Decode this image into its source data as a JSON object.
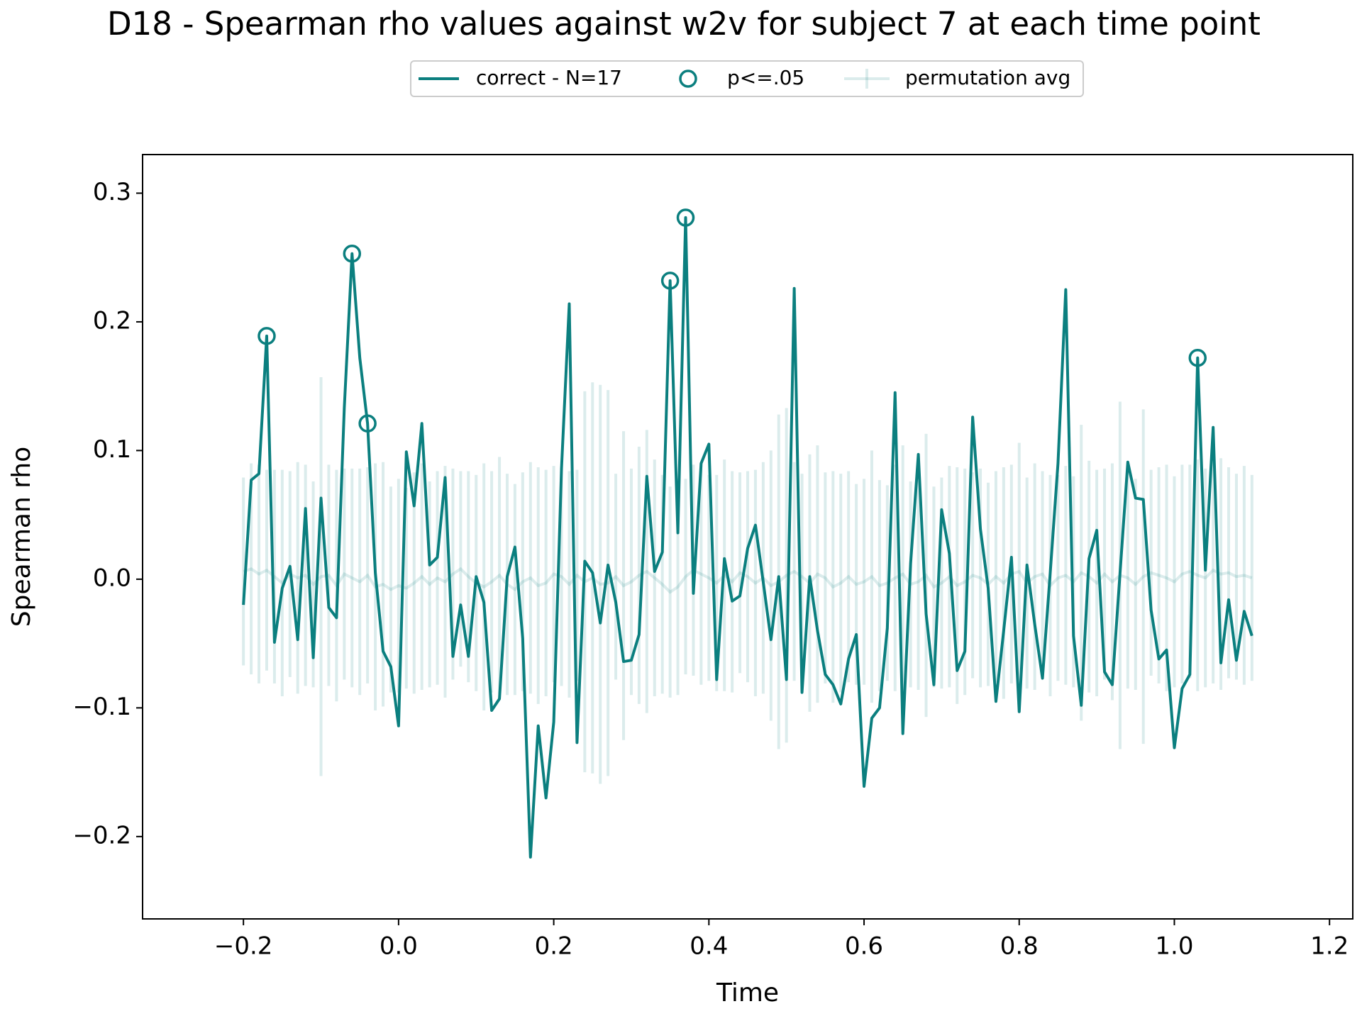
{
  "chart_data": {
    "type": "line",
    "title": "D18 - Spearman rho values against w2v for subject 7 at each time point",
    "xlabel": "Time",
    "ylabel": "Spearman rho",
    "x": [
      -0.2,
      -0.19,
      -0.18,
      -0.17,
      -0.16,
      -0.15,
      -0.14,
      -0.13,
      -0.12,
      -0.11,
      -0.1,
      -0.09,
      -0.08,
      -0.07,
      -0.06,
      -0.05,
      -0.04,
      -0.03,
      -0.02,
      -0.01,
      0,
      0.01,
      0.02,
      0.03,
      0.04,
      0.05,
      0.06,
      0.07,
      0.08,
      0.09,
      0.1,
      0.11,
      0.12,
      0.13,
      0.14,
      0.15,
      0.16,
      0.17,
      0.18,
      0.19,
      0.2,
      0.21,
      0.22,
      0.23,
      0.24,
      0.25,
      0.26,
      0.27,
      0.28,
      0.29,
      0.3,
      0.31,
      0.32,
      0.33,
      0.34,
      0.35,
      0.36,
      0.37,
      0.38,
      0.39,
      0.4,
      0.41,
      0.42,
      0.43,
      0.44,
      0.45,
      0.46,
      0.47,
      0.48,
      0.49,
      0.5,
      0.51,
      0.52,
      0.53,
      0.54,
      0.55,
      0.56,
      0.57,
      0.58,
      0.59,
      0.6,
      0.61,
      0.62,
      0.63,
      0.64,
      0.65,
      0.66,
      0.67,
      0.68,
      0.69,
      0.7,
      0.71,
      0.72,
      0.73,
      0.74,
      0.75,
      0.76,
      0.77,
      0.78,
      0.79,
      0.8,
      0.81,
      0.82,
      0.83,
      0.84,
      0.85,
      0.86,
      0.87,
      0.88,
      0.89,
      0.9,
      0.91,
      0.92,
      0.93,
      0.94,
      0.95,
      0.96,
      0.97,
      0.98,
      0.99,
      1,
      1.01,
      1.02,
      1.03,
      1.04,
      1.05,
      1.06,
      1.07,
      1.08,
      1.09,
      1.1
    ],
    "series": [
      {
        "name": "correct - N=17",
        "color": "#0b7f7f",
        "values": [
          -0.02,
          0.077,
          0.082,
          0.189,
          -0.049,
          -0.007,
          0.01,
          -0.047,
          0.055,
          -0.061,
          0.063,
          -0.022,
          -0.03,
          0.133,
          0.253,
          0.172,
          0.121,
          0.005,
          -0.056,
          -0.068,
          -0.114,
          0.099,
          0.057,
          0.121,
          0.011,
          0.017,
          0.079,
          -0.06,
          -0.02,
          -0.06,
          0.002,
          -0.018,
          -0.102,
          -0.093,
          0.002,
          0.025,
          -0.046,
          -0.216,
          -0.114,
          -0.17,
          -0.111,
          0.086,
          0.214,
          -0.127,
          0.014,
          0.005,
          -0.034,
          0.011,
          -0.018,
          -0.064,
          -0.063,
          -0.043,
          0.08,
          0.006,
          0.021,
          0.232,
          0.036,
          0.281,
          -0.011,
          0.09,
          0.105,
          -0.078,
          0.016,
          -0.017,
          -0.013,
          0.024,
          0.042,
          -0.002,
          -0.047,
          0.002,
          -0.078,
          0.226,
          -0.088,
          0.002,
          -0.04,
          -0.074,
          -0.082,
          -0.097,
          -0.062,
          -0.043,
          -0.161,
          -0.108,
          -0.1,
          -0.038,
          0.145,
          -0.12,
          0.012,
          0.097,
          -0.027,
          -0.082,
          0.054,
          0.02,
          -0.071,
          -0.056,
          0.126,
          0.039,
          -0.007,
          -0.095,
          -0.04,
          0.017,
          -0.103,
          0.011,
          -0.035,
          -0.077,
          0.005,
          0.09,
          0.225,
          -0.044,
          -0.098,
          0.016,
          0.038,
          -0.072,
          -0.082,
          0.005,
          0.091,
          0.063,
          0.062,
          -0.024,
          -0.062,
          -0.055,
          -0.131,
          -0.085,
          -0.074,
          0.172,
          0.007,
          0.118,
          -0.065,
          -0.016,
          -0.063,
          -0.025,
          -0.044
        ]
      },
      {
        "name": "p<=.05",
        "color": "#0b7f7f",
        "marker": "circle",
        "x": [
          -0.17,
          -0.06,
          -0.04,
          0.35,
          0.37,
          1.03
        ],
        "values": [
          0.189,
          0.253,
          0.121,
          0.232,
          0.281,
          0.172
        ]
      },
      {
        "name": "permutation avg",
        "color": "#0b7f7f",
        "alpha": 0.15,
        "values": [
          0.006,
          0.008,
          0.004,
          0.007,
          0.002,
          -0.003,
          0.004,
          0.001,
          0.003,
          -0.004,
          0.002,
          0.003,
          -0.005,
          0.004,
          0.001,
          -0.002,
          0.003,
          -0.006,
          -0.004,
          -0.008,
          -0.005,
          -0.007,
          -0.003,
          0.002,
          -0.004,
          0.001,
          -0.002,
          0.004,
          0.008,
          0.002,
          -0.003,
          -0.006,
          -0.002,
          0.003,
          -0.004,
          -0.008,
          -0.002,
          0.001,
          -0.005,
          -0.003,
          0.004,
          0.002,
          -0.004,
          0.003,
          -0.002,
          0.001,
          -0.004,
          -0.003,
          0.002,
          -0.005,
          -0.002,
          0.003,
          0.006,
          0.001,
          -0.004,
          -0.01,
          -0.006,
          0.002,
          0.007,
          0.004,
          0.001,
          -0.003,
          0.003,
          -0.002,
          0.005,
          0.002,
          -0.003,
          0.001,
          -0.005,
          -0.002,
          0.003,
          0.006,
          0.002,
          -0.003,
          0.004,
          0.001,
          -0.006,
          -0.003,
          0.002,
          -0.004,
          -0.002,
          0.002,
          -0.005,
          -0.003,
          0.001,
          0.004,
          -0.004,
          -0.002,
          0.003,
          -0.006,
          -0.003,
          0.002,
          -0.005,
          -0.002,
          0.003,
          0.001,
          -0.004,
          0.002,
          -0.003,
          0.004,
          0.006,
          -0.003,
          0.002,
          0.004,
          -0.005,
          0.001,
          0.003,
          -0.002,
          0.005,
          0.002,
          -0.003,
          0.004,
          -0.002,
          0.003,
          0.001,
          -0.004,
          0.002,
          0.005,
          0.003,
          0.001,
          -0.002,
          0.004,
          0.006,
          0.003,
          0.001,
          0.007,
          0.004,
          0.005,
          0.002,
          0.003,
          0.001
        ],
        "errors": [
          0.073,
          0.082,
          0.085,
          0.078,
          0.083,
          0.088,
          0.08,
          0.09,
          0.086,
          0.08,
          0.155,
          0.086,
          0.09,
          0.082,
          0.085,
          0.088,
          0.084,
          0.096,
          0.095,
          0.08,
          0.083,
          0.078,
          0.086,
          0.088,
          0.08,
          0.083,
          0.09,
          0.082,
          0.076,
          0.082,
          0.084,
          0.096,
          0.086,
          0.092,
          0.086,
          0.082,
          0.085,
          0.09,
          0.092,
          0.088,
          0.084,
          0.085,
          0.088,
          0.082,
          0.148,
          0.152,
          0.155,
          0.15,
          0.08,
          0.12,
          0.088,
          0.1,
          0.11,
          0.092,
          0.085,
          0.082,
          0.084,
          0.076,
          0.082,
          0.086,
          0.08,
          0.084,
          0.09,
          0.086,
          0.078,
          0.082,
          0.088,
          0.09,
          0.105,
          0.13,
          0.13,
          0.085,
          0.08,
          0.1,
          0.1,
          0.082,
          0.09,
          0.085,
          0.082,
          0.078,
          0.08,
          0.098,
          0.082,
          0.076,
          0.088,
          0.1,
          0.08,
          0.084,
          0.11,
          0.078,
          0.082,
          0.086,
          0.092,
          0.088,
          0.08,
          0.085,
          0.079,
          0.082,
          0.09,
          0.085,
          0.1,
          0.082,
          0.088,
          0.08,
          0.086,
          0.08,
          0.085,
          0.082,
          0.115,
          0.09,
          0.088,
          0.082,
          0.092,
          0.135,
          0.086,
          0.082,
          0.13,
          0.08,
          0.084,
          0.088,
          0.082,
          0.085,
          0.083,
          0.09,
          0.085,
          0.088,
          0.09,
          0.082,
          0.08,
          0.085,
          0.08
        ]
      }
    ],
    "xlim": [
      -0.33,
      1.23
    ],
    "ylim": [
      -0.264,
      0.33
    ],
    "xticks": [
      {
        "value": -0.2,
        "label": "−0.2"
      },
      {
        "value": 0,
        "label": "0.0"
      },
      0.2,
      0.4,
      0.6,
      0.8,
      {
        "value": 1,
        "label": "1.0"
      },
      1.2
    ],
    "yticks": [
      {
        "value": -0.2,
        "label": "−0.2"
      },
      {
        "value": -0.1,
        "label": "−0.1"
      },
      {
        "value": 0,
        "label": "0.0"
      },
      0.1,
      0.2,
      0.3
    ],
    "legend": "top-center"
  }
}
